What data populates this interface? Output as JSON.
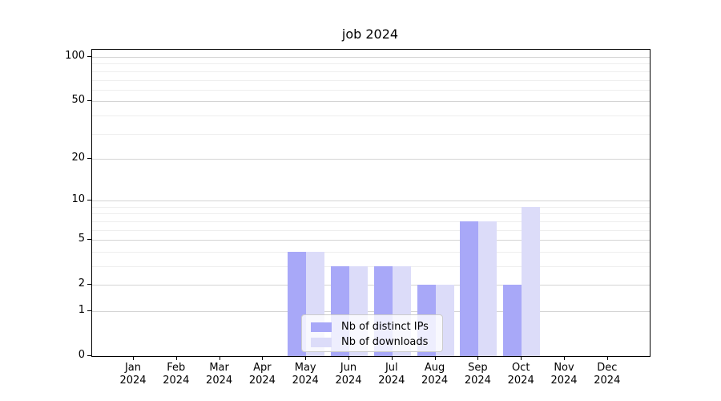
{
  "title": "job 2024",
  "legend": {
    "items": [
      {
        "label": "Nb of distinct IPs",
        "color": "#a8a8f8"
      },
      {
        "label": "Nb of downloads",
        "color": "#dcdcf9"
      }
    ]
  },
  "chart_data": {
    "type": "bar",
    "title": "job 2024",
    "scale": "log(1+y)",
    "categories": [
      "Jan 2024",
      "Feb 2024",
      "Mar 2024",
      "Apr 2024",
      "May 2024",
      "Jun 2024",
      "Jul 2024",
      "Aug 2024",
      "Sep 2024",
      "Oct 2024",
      "Nov 2024",
      "Dec 2024"
    ],
    "series": [
      {
        "name": "Nb of distinct IPs",
        "color": "#a8a8f8",
        "values": [
          0,
          0,
          0,
          0,
          4,
          3,
          3,
          2,
          7,
          2,
          0,
          0
        ]
      },
      {
        "name": "Nb of downloads",
        "color": "#dcdcf9",
        "values": [
          0,
          0,
          0,
          0,
          4,
          3,
          3,
          2,
          7,
          9,
          0,
          0
        ]
      }
    ],
    "yticks": [
      0,
      1,
      2,
      5,
      10,
      20,
      50,
      100
    ],
    "minor_yticks": [
      3,
      4,
      6,
      7,
      8,
      9,
      30,
      40,
      60,
      70,
      80,
      90
    ],
    "ylim": [
      0,
      112
    ],
    "grid": true,
    "legend_position": "lower center",
    "colors": {
      "major_grid": "#d4d4d4",
      "minor_grid": "#eeeeee",
      "axis": "#000000"
    }
  }
}
